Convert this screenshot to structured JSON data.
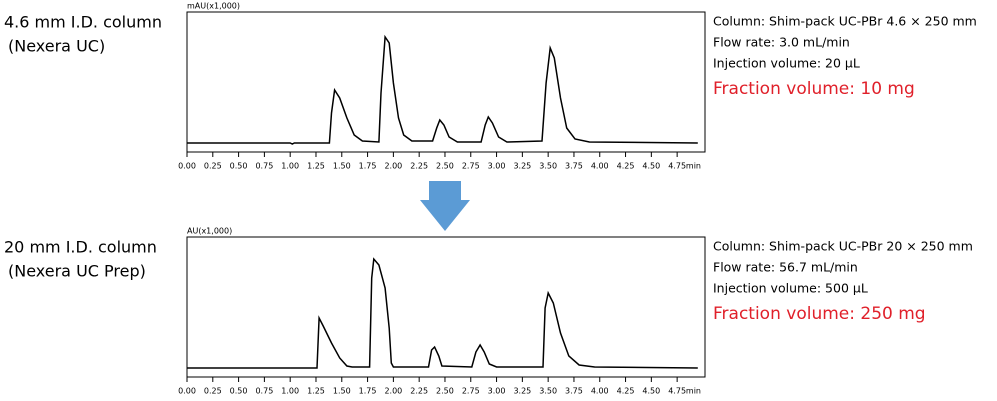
{
  "chart_data": [
    {
      "type": "line",
      "title": "4.6 mm I.D. column",
      "subtitle": "(Nexera UC)",
      "ylabel": "mAU(x1,000)",
      "xlabel": "min",
      "annotations": [
        "Column: Shim-pack UC-PBr 4.6 × 250 mm",
        "Flow rate: 3.0 mL/min",
        "Injection volume: 20 µL"
      ],
      "fraction_note": "Fraction volume: 10 mg",
      "fraction_color": "#e0202a",
      "color": "#000000",
      "xlim": [
        0,
        5.02
      ],
      "ylim": [
        -0.09,
        1.31
      ],
      "xticks": [
        {
          "value": 0,
          "label": "0.00"
        },
        {
          "value": 0.25,
          "label": "0.25"
        },
        {
          "value": 0.5,
          "label": "0.50"
        },
        {
          "value": 0.75,
          "label": "0.75"
        },
        {
          "value": 1,
          "label": "1.00"
        },
        {
          "value": 1.25,
          "label": "1.25"
        },
        {
          "value": 1.5,
          "label": "1.50"
        },
        {
          "value": 1.75,
          "label": "1.75"
        },
        {
          "value": 2,
          "label": "2.00"
        },
        {
          "value": 2.25,
          "label": "2.25"
        },
        {
          "value": 2.5,
          "label": "2.50"
        },
        {
          "value": 2.75,
          "label": "2.75"
        },
        {
          "value": 3,
          "label": "3.00"
        },
        {
          "value": 3.25,
          "label": "3.25"
        },
        {
          "value": 3.5,
          "label": "3.50"
        },
        {
          "value": 3.75,
          "label": "3.75"
        },
        {
          "value": 4,
          "label": "4.00"
        },
        {
          "value": 4.25,
          "label": "4.25"
        },
        {
          "value": 4.5,
          "label": "4.50"
        },
        {
          "value": 4.75,
          "label": "4.75"
        }
      ],
      "x": [
        0,
        1.0,
        1.02,
        1.04,
        1.38,
        1.4,
        1.43,
        1.48,
        1.55,
        1.62,
        1.7,
        1.86,
        1.88,
        1.92,
        1.96,
        2.0,
        2.05,
        2.1,
        2.18,
        2.38,
        2.42,
        2.45,
        2.49,
        2.54,
        2.62,
        2.85,
        2.89,
        2.92,
        2.96,
        3.02,
        3.1,
        3.44,
        3.48,
        3.52,
        3.56,
        3.62,
        3.68,
        3.76,
        3.9,
        4.95
      ],
      "values": [
        0,
        0,
        -0.01,
        0,
        0,
        0.3,
        0.53,
        0.45,
        0.25,
        0.08,
        0.02,
        0.01,
        0.5,
        1.06,
        1.0,
        0.6,
        0.25,
        0.08,
        0.02,
        0.02,
        0.15,
        0.23,
        0.18,
        0.06,
        0.01,
        0.01,
        0.18,
        0.26,
        0.2,
        0.06,
        0.01,
        0.02,
        0.6,
        0.95,
        0.85,
        0.45,
        0.15,
        0.04,
        0.01,
        0
      ]
    },
    {
      "type": "line",
      "title": "20 mm I.D. column",
      "subtitle": "(Nexera UC Prep)",
      "ylabel": "AU(x1,000)",
      "xlabel": "min",
      "annotations": [
        "Column: Shim-pack UC-PBr 20 × 250 mm",
        "Flow rate: 56.7 mL/min",
        "Injection volume: 500 µL"
      ],
      "fraction_note": "Fraction volume: 250 mg",
      "fraction_color": "#e0202a",
      "color": "#000000",
      "xlim": [
        0,
        5.02
      ],
      "ylim": [
        -0.09,
        1.31
      ],
      "xticks": [
        {
          "value": 0,
          "label": "0.00"
        },
        {
          "value": 0.25,
          "label": "0.25"
        },
        {
          "value": 0.5,
          "label": "0.50"
        },
        {
          "value": 0.75,
          "label": "0.75"
        },
        {
          "value": 1,
          "label": "1.00"
        },
        {
          "value": 1.25,
          "label": "1.25"
        },
        {
          "value": 1.5,
          "label": "1.50"
        },
        {
          "value": 1.75,
          "label": "1.75"
        },
        {
          "value": 2,
          "label": "2.00"
        },
        {
          "value": 2.25,
          "label": "2.25"
        },
        {
          "value": 2.5,
          "label": "2.50"
        },
        {
          "value": 2.75,
          "label": "2.75"
        },
        {
          "value": 3,
          "label": "3.00"
        },
        {
          "value": 3.25,
          "label": "3.25"
        },
        {
          "value": 3.5,
          "label": "3.50"
        },
        {
          "value": 3.75,
          "label": "3.75"
        },
        {
          "value": 4,
          "label": "4.00"
        },
        {
          "value": 4.25,
          "label": "4.25"
        },
        {
          "value": 4.5,
          "label": "4.50"
        },
        {
          "value": 4.75,
          "label": "4.75"
        }
      ],
      "x": [
        0,
        1.26,
        1.28,
        1.32,
        1.4,
        1.48,
        1.55,
        1.6,
        1.77,
        1.79,
        1.81,
        1.86,
        1.92,
        1.96,
        1.98,
        2.0,
        2.34,
        2.37,
        2.4,
        2.44,
        2.47,
        2.76,
        2.8,
        2.84,
        2.88,
        2.93,
        3.0,
        3.45,
        3.47,
        3.5,
        3.55,
        3.62,
        3.7,
        3.8,
        3.95,
        4.95
      ],
      "values": [
        0,
        0,
        0.5,
        0.42,
        0.25,
        0.1,
        0.02,
        0.01,
        0.01,
        0.9,
        1.09,
        1.03,
        0.8,
        0.4,
        0.05,
        0.01,
        0.01,
        0.18,
        0.21,
        0.12,
        0.02,
        0.01,
        0.16,
        0.23,
        0.16,
        0.04,
        0.01,
        0.01,
        0.6,
        0.75,
        0.65,
        0.35,
        0.12,
        0.03,
        0.01,
        0
      ]
    }
  ]
}
